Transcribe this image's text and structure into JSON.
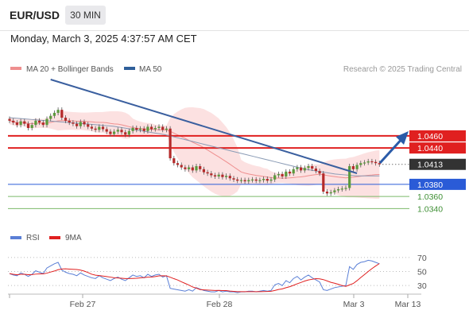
{
  "header": {
    "symbol": "EUR/USD",
    "timeframe": "30 MIN"
  },
  "datetime": "Monday, March 3, 2025 4:37:57 AM CET",
  "legend": {
    "bollinger_label": "MA 20 + Bollinger Bands",
    "ma50_label": "MA 50",
    "research_label": "Research © 2025 Trading Central",
    "bollinger_color": "#ef8f8f",
    "ma50_color": "#2f5f9a"
  },
  "rsi_legend": {
    "rsi_label": "RSI",
    "ma_label": "9MA",
    "rsi_color": "#5a7fd6",
    "ma_color": "#e02020"
  },
  "chart_data": {
    "type": "candlestick",
    "levels": [
      {
        "value": 1.046,
        "label": "1.0460",
        "kind": "resistance",
        "color": "#e02020"
      },
      {
        "value": 1.044,
        "label": "1.0440",
        "kind": "resistance",
        "color": "#e02020"
      },
      {
        "value": 1.0413,
        "label": "1.0413",
        "kind": "last-price",
        "color": "#333333"
      },
      {
        "value": 1.038,
        "label": "1.0380",
        "kind": "pivot",
        "color": "#2a5bd7"
      },
      {
        "value": 1.036,
        "label": "1.0360",
        "kind": "support",
        "color": "#7cba6a"
      },
      {
        "value": 1.034,
        "label": "1.0340",
        "kind": "support",
        "color": "#7cba6a"
      }
    ],
    "x_ticks": [
      "Feb 27",
      "Feb 28",
      "Mar 3",
      "Mar 13"
    ],
    "rsi_ticks": [
      70,
      50,
      30
    ],
    "rsi_range": [
      20,
      80
    ],
    "price_range": [
      1.033,
      1.0553
    ],
    "closes": [
      1.0485,
      1.0482,
      1.0478,
      1.0484,
      1.048,
      1.0473,
      1.0478,
      1.0485,
      1.0482,
      1.0478,
      1.0488,
      1.0493,
      1.0498,
      1.0503,
      1.049,
      1.0485,
      1.0482,
      1.048,
      1.0476,
      1.0483,
      1.0479,
      1.0475,
      1.0472,
      1.047,
      1.0475,
      1.0471,
      1.0467,
      1.0463,
      1.0467,
      1.047,
      1.0466,
      1.0462,
      1.0468,
      1.0473,
      1.047,
      1.0472,
      1.0468,
      1.0475,
      1.0471,
      1.0473,
      1.0475,
      1.047,
      1.0472,
      1.0423,
      1.0415,
      1.0412,
      1.0408,
      1.0405,
      1.0408,
      1.0403,
      1.041,
      1.0405,
      1.04,
      1.0398,
      1.0395,
      1.0393,
      1.0396,
      1.0392,
      1.0394,
      1.039,
      1.0388,
      1.0386,
      1.0387,
      1.0385,
      1.0387,
      1.0388,
      1.0386,
      1.0387,
      1.0389,
      1.0386,
      1.0388,
      1.0395,
      1.0397,
      1.0393,
      1.0401,
      1.0398,
      1.0405,
      1.0408,
      1.0403,
      1.0407,
      1.041,
      1.0406,
      1.0402,
      1.0398,
      1.0368,
      1.0365,
      1.0367,
      1.037,
      1.0372,
      1.0373,
      1.0374,
      1.041,
      1.0405,
      1.0412,
      1.0415,
      1.0416,
      1.0418,
      1.0417,
      1.0415,
      1.0413
    ],
    "ma50": [
      1.049,
      1.0489,
      1.0488,
      1.0487,
      1.0486,
      1.0485,
      1.0484,
      1.0483,
      1.0482,
      1.0481,
      1.048,
      1.0479,
      1.0478,
      1.0477,
      1.0476,
      1.0474,
      1.0472,
      1.047,
      1.0468,
      1.0466,
      1.0464,
      1.0462,
      1.0459,
      1.0456,
      1.0453,
      1.045,
      1.0447,
      1.0444,
      1.0441,
      1.0438,
      1.0435,
      1.0432,
      1.0429,
      1.0426,
      1.0423,
      1.042,
      1.0417,
      1.0414,
      1.0411,
      1.0408,
      1.0405,
      1.0403,
      1.0401,
      1.0399,
      1.0397,
      1.0396,
      1.0395,
      1.0394,
      1.0394,
      1.0394,
      1.0394
    ],
    "rsi": [
      47,
      45,
      44,
      48,
      46,
      43,
      46,
      51,
      49,
      47,
      55,
      58,
      61,
      63,
      52,
      49,
      47,
      46,
      44,
      48,
      45,
      43,
      41,
      40,
      44,
      41,
      39,
      37,
      40,
      42,
      39,
      37,
      41,
      45,
      43,
      44,
      41,
      46,
      43,
      45,
      46,
      42,
      44,
      26,
      25,
      24,
      23,
      22,
      24,
      22,
      27,
      25,
      23,
      22,
      21,
      21,
      23,
      21,
      22,
      21,
      21,
      20,
      21,
      21,
      22,
      22,
      21,
      22,
      23,
      22,
      23,
      31,
      33,
      30,
      37,
      34,
      40,
      43,
      38,
      42,
      45,
      41,
      38,
      35,
      24,
      23,
      25,
      27,
      28,
      29,
      30,
      57,
      53,
      60,
      63,
      64,
      66,
      65,
      63,
      61
    ]
  }
}
